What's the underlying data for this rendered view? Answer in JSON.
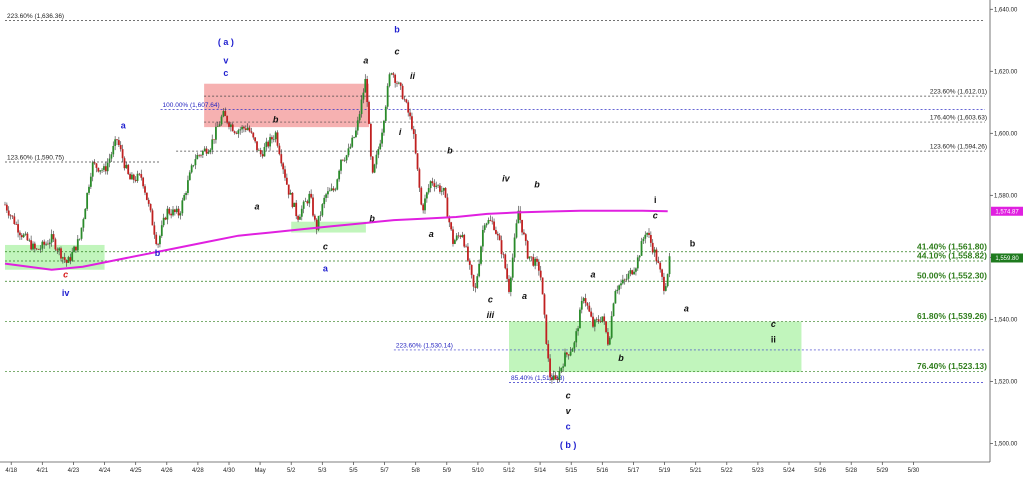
{
  "chart_data": {
    "type": "candlestick",
    "x_tick_labels": [
      "4/18",
      "4/21",
      "4/23",
      "4/24",
      "4/25",
      "4/26",
      "4/28",
      "4/30",
      "May",
      "5/2",
      "5/3",
      "5/5",
      "5/7",
      "5/8",
      "5/9",
      "5/10",
      "5/12",
      "5/14",
      "5/15",
      "5/16",
      "5/17",
      "5/19",
      "5/21",
      "5/22",
      "5/23",
      "5/24",
      "5/26",
      "5/28",
      "5/29",
      "5/30"
    ],
    "y_ticks": [
      1500,
      1520,
      1540,
      1560,
      1580,
      1600,
      1620,
      1640
    ],
    "y_tick_labels": [
      "1,500.00",
      "1,520.00",
      "1,540.00",
      "1,560.00",
      "1,580.00",
      "1,600.00",
      "1,620.00",
      "1,640.00"
    ],
    "ylim": [
      1494,
      1643
    ],
    "moving_average": {
      "color": "#e020e0",
      "last_value_label": "1,574.87",
      "points": [
        [
          0,
          1558
        ],
        [
          1.5,
          1556
        ],
        [
          2.5,
          1557
        ],
        [
          3.5,
          1559
        ],
        [
          4.5,
          1561
        ],
        [
          5.5,
          1563
        ],
        [
          6.5,
          1565
        ],
        [
          7.5,
          1567
        ],
        [
          8.5,
          1568
        ],
        [
          9.5,
          1569
        ],
        [
          10.5,
          1570
        ],
        [
          11.5,
          1571
        ],
        [
          12.5,
          1572
        ],
        [
          13.5,
          1572.5
        ],
        [
          14.5,
          1573
        ],
        [
          15.5,
          1574
        ],
        [
          16.5,
          1574.5
        ],
        [
          17.5,
          1574.8
        ],
        [
          18.5,
          1575
        ],
        [
          19.5,
          1575
        ],
        [
          20.5,
          1575
        ],
        [
          21.3,
          1574.87
        ]
      ]
    },
    "price_path": [
      [
        0,
        1577
      ],
      [
        0.5,
        1568
      ],
      [
        1,
        1562
      ],
      [
        1.5,
        1566
      ],
      [
        2,
        1558
      ],
      [
        2.4,
        1566
      ],
      [
        2.8,
        1590
      ],
      [
        3.2,
        1588
      ],
      [
        3.6,
        1598
      ],
      [
        4,
        1585
      ],
      [
        4.4,
        1586
      ],
      [
        4.7,
        1573
      ],
      [
        4.9,
        1564
      ],
      [
        5.2,
        1575
      ],
      [
        5.6,
        1574
      ],
      [
        6.1,
        1592
      ],
      [
        6.6,
        1596
      ],
      [
        7,
        1606
      ],
      [
        7.4,
        1601
      ],
      [
        7.8,
        1602
      ],
      [
        8.2,
        1593
      ],
      [
        8.7,
        1600
      ],
      [
        9.1,
        1582
      ],
      [
        9.4,
        1573
      ],
      [
        9.8,
        1580
      ],
      [
        10,
        1569
      ],
      [
        10.3,
        1580
      ],
      [
        10.6,
        1582
      ],
      [
        10.8,
        1592
      ],
      [
        11,
        1593
      ],
      [
        11.3,
        1601
      ],
      [
        11.6,
        1618
      ],
      [
        11.8,
        1585
      ],
      [
        12.1,
        1600
      ],
      [
        12.4,
        1621
      ],
      [
        12.8,
        1612
      ],
      [
        13.1,
        1602
      ],
      [
        13.4,
        1575
      ],
      [
        13.7,
        1585
      ],
      [
        14.1,
        1581
      ],
      [
        14.4,
        1565
      ],
      [
        14.7,
        1568
      ],
      [
        15.1,
        1548
      ],
      [
        15.4,
        1572
      ],
      [
        15.7,
        1571
      ],
      [
        16,
        1561
      ],
      [
        16.2,
        1550
      ],
      [
        16.5,
        1575
      ],
      [
        16.8,
        1561
      ],
      [
        17.2,
        1556
      ],
      [
        17.5,
        1522
      ],
      [
        17.7,
        1520
      ],
      [
        18,
        1528
      ],
      [
        18.3,
        1532
      ],
      [
        18.6,
        1548
      ],
      [
        18.9,
        1538
      ],
      [
        19.2,
        1541
      ],
      [
        19.4,
        1532
      ],
      [
        19.6,
        1550
      ],
      [
        19.9,
        1552
      ],
      [
        20.3,
        1558
      ],
      [
        20.6,
        1569
      ],
      [
        20.9,
        1561
      ],
      [
        21.2,
        1550
      ],
      [
        21.4,
        1561
      ]
    ]
  },
  "price_box": {
    "label": "1,559.80"
  },
  "zones": [
    {
      "color": "#f5a3a3",
      "x0": 6.4,
      "x1": 11.7,
      "y0": 1602,
      "y1": 1616
    },
    {
      "color": "#b6f3b0",
      "x0": 0,
      "x1": 3.2,
      "y0": 1556,
      "y1": 1564
    },
    {
      "color": "#b6f3b0",
      "x0": 9.2,
      "x1": 11.6,
      "y0": 1568,
      "y1": 1571.5
    },
    {
      "color": "#b6f3b0",
      "x0": 16.2,
      "x1": 25.6,
      "y0": 1523,
      "y1": 1539.3
    }
  ],
  "levels": [
    {
      "label": "223.60% (1,636.36)",
      "value": 1636.36,
      "color": "#444444",
      "x0": 0,
      "x1": 31.5,
      "label_x": 0,
      "side": "left",
      "style": "small"
    },
    {
      "label": "123.60% (1,590.75)",
      "value": 1590.75,
      "color": "#444444",
      "x0": 0,
      "x1": 5,
      "label_x": 0,
      "side": "left",
      "style": "small"
    },
    {
      "label": "100.00% (1,607.64)",
      "value": 1607.64,
      "color": "#3232c8",
      "x0": 5,
      "x1": 31.5,
      "label_x": 5,
      "side": "left",
      "style": "small-blue"
    },
    {
      "label": "223.60% (1,612.01)",
      "value": 1612.01,
      "color": "#444444",
      "x0": 6.4,
      "x1": 31.5,
      "label_x": 31.5,
      "side": "right",
      "style": "small"
    },
    {
      "label": "176.40% (1,603.63)",
      "value": 1603.63,
      "color": "#444444",
      "x0": 6.4,
      "x1": 31.5,
      "label_x": 31.5,
      "side": "right",
      "style": "small"
    },
    {
      "label": "123.60% (1,594.26)",
      "value": 1594.26,
      "color": "#444444",
      "x0": 5.5,
      "x1": 31.5,
      "label_x": 31.5,
      "side": "right",
      "style": "small"
    },
    {
      "label": "41.40% (1,561.80)",
      "value": 1561.8,
      "color": "#2e7d1b",
      "x0": 0,
      "x1": 31.5,
      "label_x": 31.5,
      "side": "right",
      "style": "green"
    },
    {
      "label": "44.10% (1,558.82)",
      "value": 1558.82,
      "color": "#2e7d1b",
      "x0": 0,
      "x1": 31.5,
      "label_x": 31.5,
      "side": "right",
      "style": "green"
    },
    {
      "label": "50.00% (1,552.30)",
      "value": 1552.3,
      "color": "#2e7d1b",
      "x0": 0,
      "x1": 31.5,
      "label_x": 31.5,
      "side": "right",
      "style": "green"
    },
    {
      "label": "61.80% (1,539.26)",
      "value": 1539.26,
      "color": "#2e7d1b",
      "x0": 0,
      "x1": 31.5,
      "label_x": 31.5,
      "side": "right",
      "style": "green"
    },
    {
      "label": "76.40% (1,523.13)",
      "value": 1523.13,
      "color": "#2e7d1b",
      "x0": 0,
      "x1": 31.5,
      "label_x": 31.5,
      "side": "right",
      "style": "green"
    },
    {
      "label": "223.60% (1,530.14)",
      "value": 1530.14,
      "color": "#3232c8",
      "x0": 12.5,
      "x1": 31.5,
      "label_x": 12.5,
      "side": "left",
      "style": "small-blue"
    },
    {
      "label": "85.40% (1,519.68)",
      "value": 1519.68,
      "color": "#3232c8",
      "x0": 16.2,
      "x1": 31.5,
      "label_x": 16.2,
      "side": "left",
      "style": "small-blue"
    }
  ],
  "wave_labels": [
    {
      "text": "( a )",
      "x": 7.1,
      "y": 1628.5,
      "color": "blue",
      "style": "up"
    },
    {
      "text": "v",
      "x": 7.1,
      "y": 1622.5,
      "color": "blue",
      "style": "up"
    },
    {
      "text": "c",
      "x": 7.1,
      "y": 1618.5,
      "color": "blue",
      "style": "up"
    },
    {
      "text": "a",
      "x": 3.8,
      "y": 1601.5,
      "color": "blue",
      "style": "up"
    },
    {
      "text": "b",
      "x": 8.7,
      "y": 1603.5,
      "color": "black",
      "style": "it"
    },
    {
      "text": "a",
      "x": 11.6,
      "y": 1622.5,
      "color": "black",
      "style": "it"
    },
    {
      "text": "b",
      "x": 12.6,
      "y": 1632.5,
      "color": "blue",
      "style": "up"
    },
    {
      "text": "c",
      "x": 12.6,
      "y": 1625.5,
      "color": "black",
      "style": "it"
    },
    {
      "text": "ii",
      "x": 13.1,
      "y": 1617.5,
      "color": "black",
      "style": "it"
    },
    {
      "text": "i",
      "x": 12.7,
      "y": 1599.5,
      "color": "black",
      "style": "it"
    },
    {
      "text": "b",
      "x": 14.3,
      "y": 1593.5,
      "color": "black",
      "style": "it"
    },
    {
      "text": "a",
      "x": 8.1,
      "y": 1575.5,
      "color": "black",
      "style": "it"
    },
    {
      "text": "b",
      "x": 11.8,
      "y": 1571.5,
      "color": "black",
      "style": "it"
    },
    {
      "text": "a",
      "x": 13.7,
      "y": 1566.5,
      "color": "black",
      "style": "it"
    },
    {
      "text": "c",
      "x": 10.3,
      "y": 1562.5,
      "color": "black",
      "style": "it"
    },
    {
      "text": "a",
      "x": 10.3,
      "y": 1555.5,
      "color": "blue",
      "style": "up"
    },
    {
      "text": "b",
      "x": 4.9,
      "y": 1560.5,
      "color": "blue",
      "style": "up"
    },
    {
      "text": "c",
      "x": 1.95,
      "y": 1553.5,
      "color": "red",
      "style": "it"
    },
    {
      "text": "iv",
      "x": 1.95,
      "y": 1547.5,
      "color": "blue",
      "style": "up"
    },
    {
      "text": "iv",
      "x": 16.1,
      "y": 1584.5,
      "color": "black",
      "style": "it"
    },
    {
      "text": "b",
      "x": 17.1,
      "y": 1582.5,
      "color": "black",
      "style": "it"
    },
    {
      "text": "c",
      "x": 15.6,
      "y": 1545.5,
      "color": "black",
      "style": "it"
    },
    {
      "text": "iii",
      "x": 15.6,
      "y": 1540.5,
      "color": "black",
      "style": "it"
    },
    {
      "text": "a",
      "x": 16.7,
      "y": 1546.5,
      "color": "black",
      "style": "it"
    },
    {
      "text": "a",
      "x": 18.9,
      "y": 1553.5,
      "color": "black",
      "style": "it"
    },
    {
      "text": "b",
      "x": 19.8,
      "y": 1526.5,
      "color": "black",
      "style": "it"
    },
    {
      "text": "i",
      "x": 20.9,
      "y": 1577.5,
      "color": "black",
      "style": "up"
    },
    {
      "text": "c",
      "x": 20.9,
      "y": 1572.5,
      "color": "black",
      "style": "it"
    },
    {
      "text": "b",
      "x": 22.1,
      "y": 1563.5,
      "color": "black",
      "style": "up"
    },
    {
      "text": "a",
      "x": 21.9,
      "y": 1542.5,
      "color": "black",
      "style": "it"
    },
    {
      "text": "c",
      "x": 24.7,
      "y": 1537.5,
      "color": "black",
      "style": "it"
    },
    {
      "text": "ii",
      "x": 24.7,
      "y": 1532.5,
      "color": "black",
      "style": "up"
    },
    {
      "text": "c",
      "x": 18.1,
      "y": 1514.5,
      "color": "black",
      "style": "it"
    },
    {
      "text": "v",
      "x": 18.1,
      "y": 1509.5,
      "color": "black",
      "style": "it"
    },
    {
      "text": "c",
      "x": 18.1,
      "y": 1504.5,
      "color": "blue",
      "style": "up"
    },
    {
      "text": "( b )",
      "x": 18.1,
      "y": 1498.5,
      "color": "blue",
      "style": "up"
    }
  ]
}
